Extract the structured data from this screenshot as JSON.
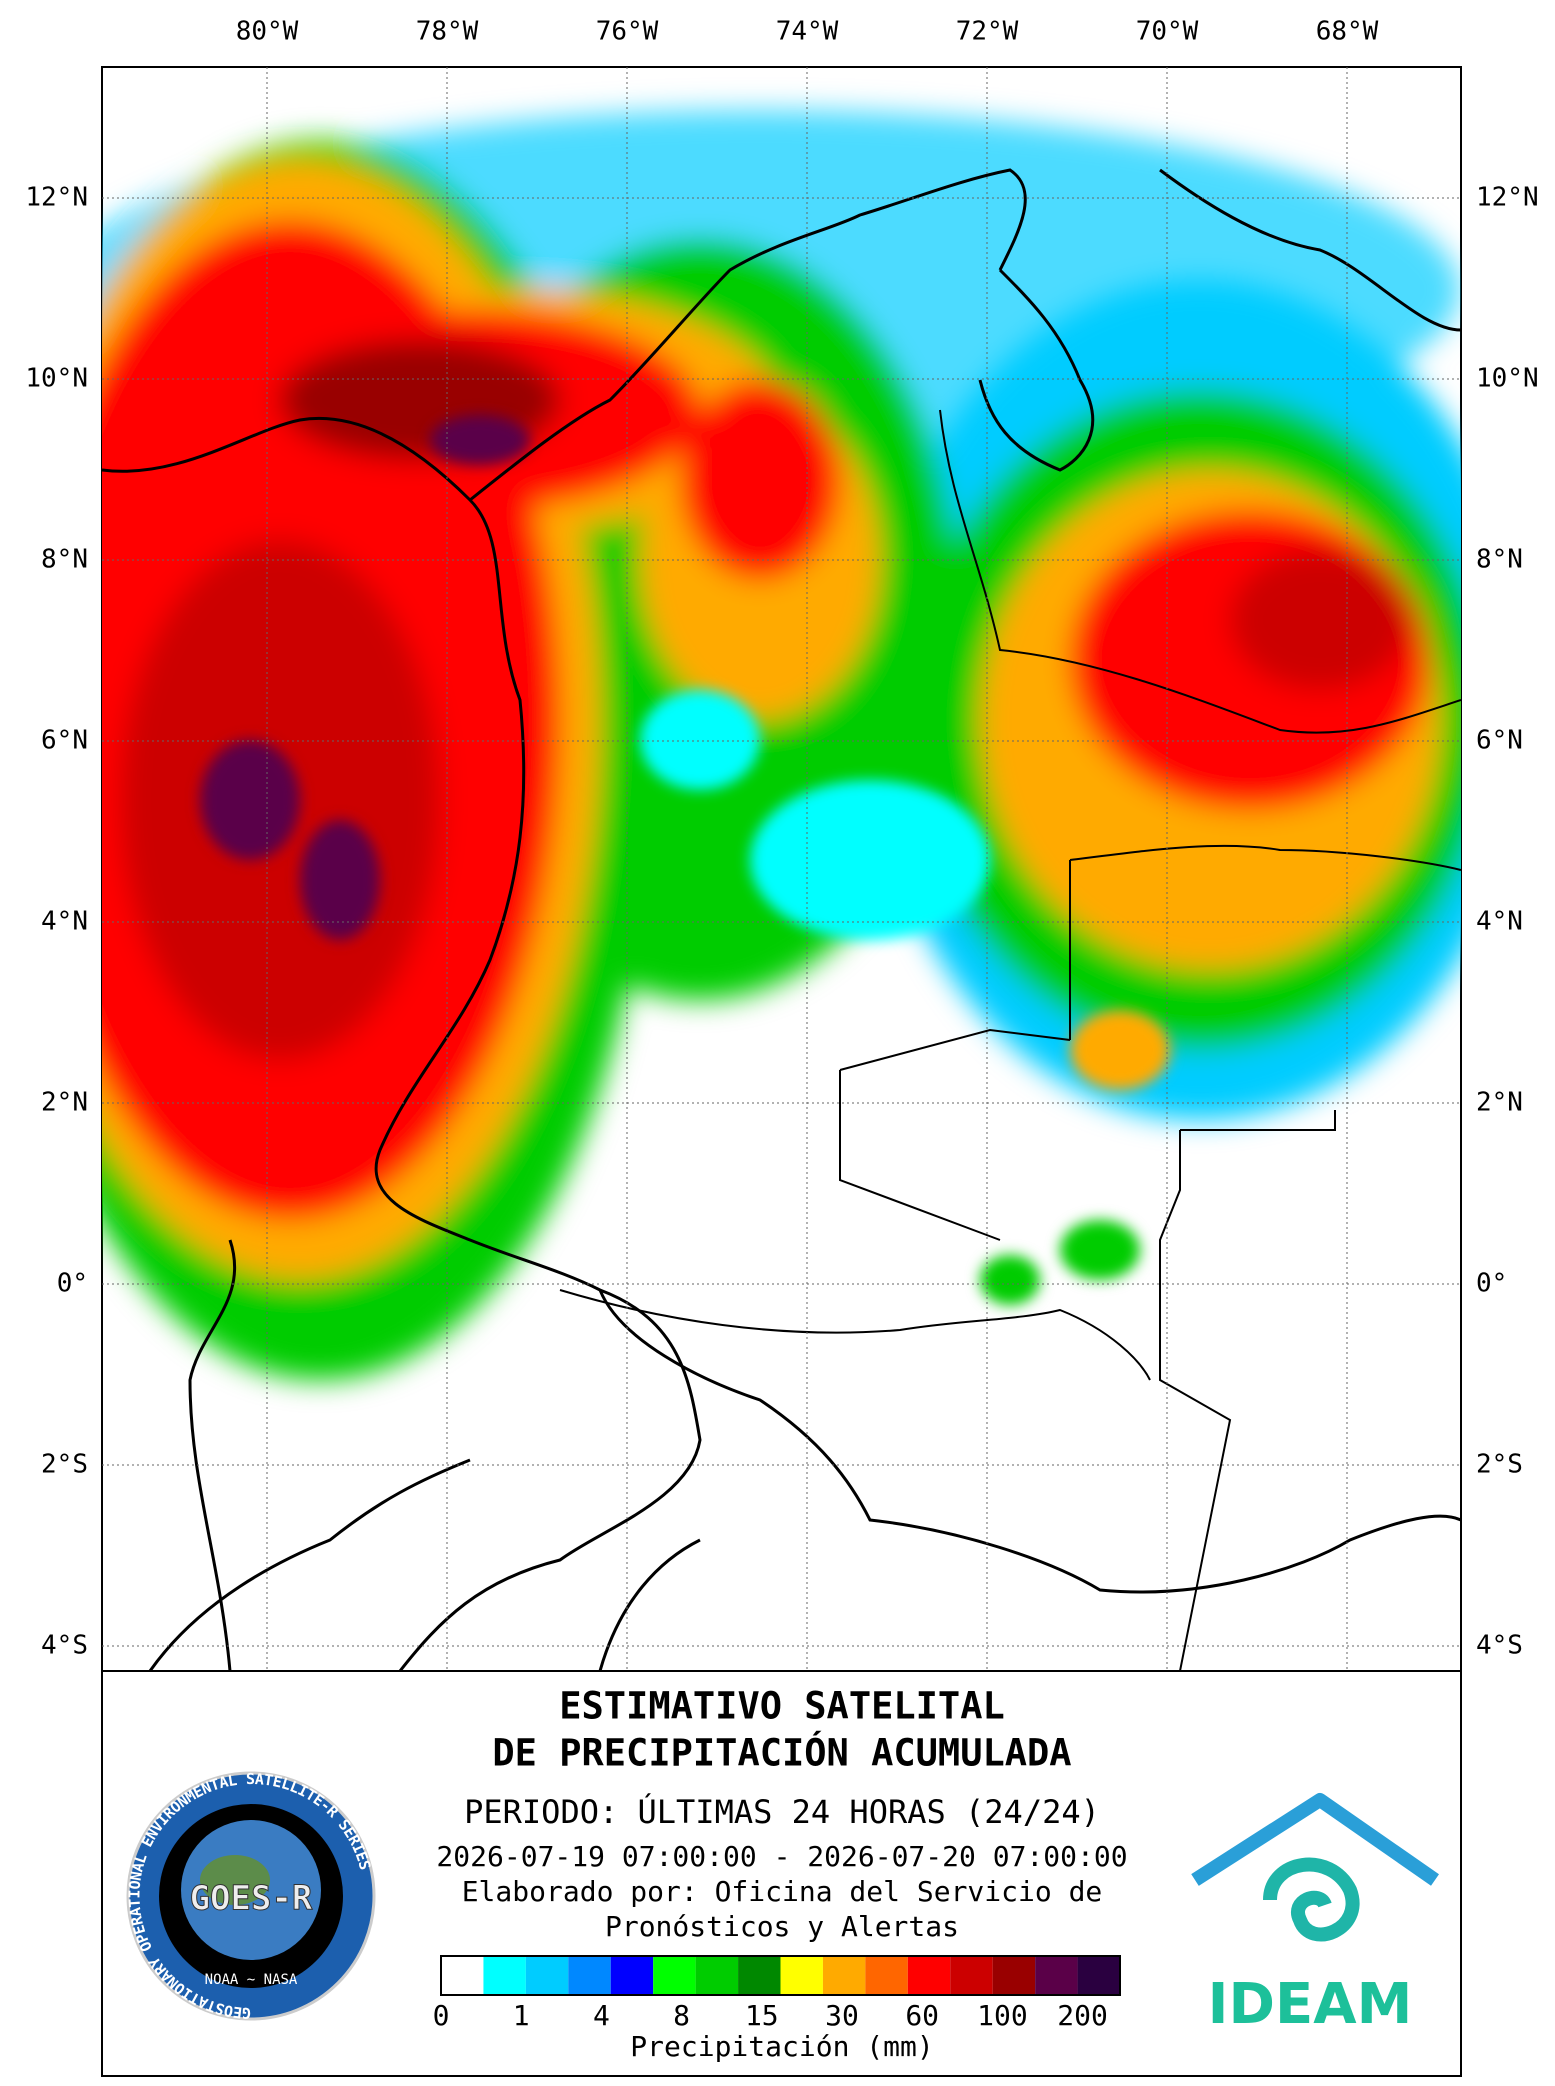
{
  "map": {
    "lon_labels": [
      "80°W",
      "78°W",
      "76°W",
      "74°W",
      "72°W",
      "70°W",
      "68°W"
    ],
    "lat_labels": [
      "12°N",
      "10°N",
      "8°N",
      "6°N",
      "4°N",
      "2°N",
      "0°",
      "2°S",
      "4°S"
    ]
  },
  "panel": {
    "title_lines": [
      "ESTIMATIVO SATELITAL",
      "DE PRECIPITACIÓN ACUMULADA"
    ],
    "period": "PERIODO: ÚLTIMAS 24 HORAS (24/24)",
    "dates": "2026-07-19 07:00:00 - 2026-07-20 07:00:00",
    "credit_lines": [
      "Elaborado por: Oficina del Servicio de",
      "Pronósticos y Alertas"
    ]
  },
  "colorbar": {
    "colors": [
      "#ffffff",
      "#00ffff",
      "#00ccff",
      "#0088ff",
      "#0000ff",
      "#00ff00",
      "#00cc00",
      "#008800",
      "#ffff00",
      "#ffaa00",
      "#ff6600",
      "#ff0000",
      "#cc0000",
      "#990000",
      "#5a0048",
      "#2a0040"
    ],
    "labels": [
      0,
      1,
      4,
      8,
      15,
      30,
      60,
      100,
      200
    ],
    "axis_label": "Precipitación (mm)"
  },
  "logos": {
    "goes": {
      "ring_text": "GEOSTATIONARY OPERATIONAL ENVIRONMENTAL SATELLITE-R SERIES",
      "name": "GOES-R",
      "footer": "NOAA ~ NASA"
    },
    "ideam": {
      "name": "IDEAM"
    }
  }
}
